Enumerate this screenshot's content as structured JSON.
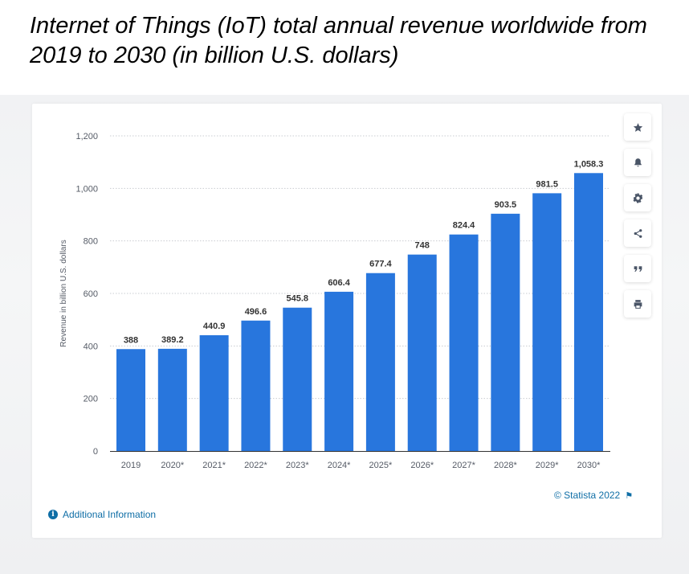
{
  "title": "Internet of Things (IoT) total annual revenue worldwide from 2019 to 2030 (in billion U.S. dollars)",
  "sidebar": {
    "icons": [
      "star-icon",
      "bell-icon",
      "gear-icon",
      "share-icon",
      "quote-icon",
      "print-icon"
    ]
  },
  "footer": {
    "credit": "© Statista 2022",
    "additional_info": "Additional Information"
  },
  "colors": {
    "bar": "#2876dd",
    "grid": "#c9ccd1",
    "axis_text": "#555b66",
    "label_text": "#333333",
    "link": "#0f6ea6"
  },
  "chart_data": {
    "type": "bar",
    "categories": [
      "2019",
      "2020*",
      "2021*",
      "2022*",
      "2023*",
      "2024*",
      "2025*",
      "2026*",
      "2027*",
      "2028*",
      "2029*",
      "2030*"
    ],
    "values": [
      388,
      389.2,
      440.9,
      496.6,
      545.8,
      606.4,
      677.4,
      748,
      824.4,
      903.5,
      981.5,
      1058.3
    ],
    "value_labels": [
      "388",
      "389.2",
      "440.9",
      "496.6",
      "545.8",
      "606.4",
      "677.4",
      "748",
      "824.4",
      "903.5",
      "981.5",
      "1,058.3"
    ],
    "ylabel": "Revenue in billion U.S. dollars",
    "xlabel": "",
    "ylim": [
      0,
      1200
    ],
    "yticks": [
      0,
      200,
      400,
      600,
      800,
      1000,
      1200
    ],
    "ytick_labels": [
      "0",
      "200",
      "400",
      "600",
      "800",
      "1,000",
      "1,200"
    ],
    "grid": true
  }
}
